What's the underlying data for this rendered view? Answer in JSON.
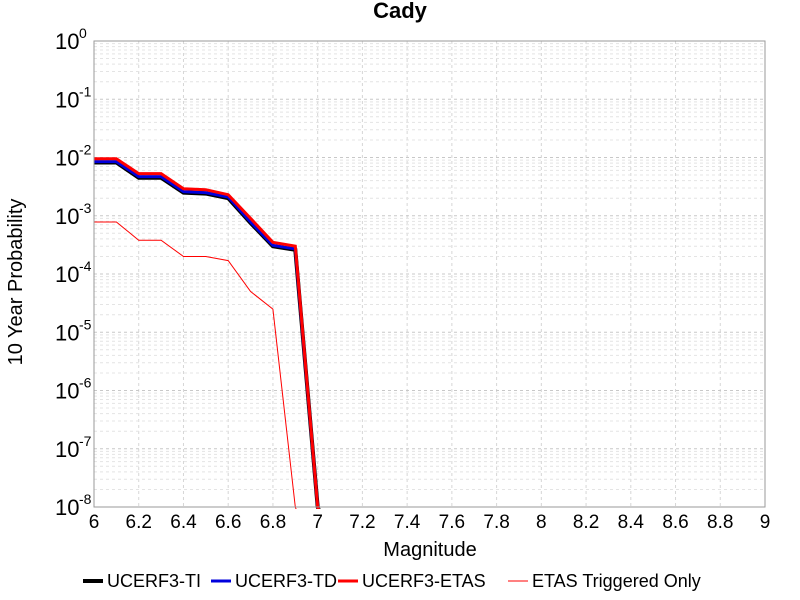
{
  "chart_data": {
    "type": "line",
    "title": "Cady",
    "xlabel": "Magnitude",
    "ylabel": "10 Year Probability",
    "xlim": [
      6,
      9
    ],
    "ylim": [
      1e-08,
      1
    ],
    "yscale": "log",
    "grid": true,
    "legend_position": "bottom",
    "xticks": [
      "6",
      "6.2",
      "6.4",
      "6.6",
      "6.8",
      "7",
      "7.2",
      "7.4",
      "7.6",
      "7.8",
      "8",
      "8.2",
      "8.4",
      "8.6",
      "8.8",
      "9"
    ],
    "yticks": [
      {
        "base": "10",
        "exp": "0"
      },
      {
        "base": "10",
        "exp": "-1"
      },
      {
        "base": "10",
        "exp": "-2"
      },
      {
        "base": "10",
        "exp": "-3"
      },
      {
        "base": "10",
        "exp": "-4"
      },
      {
        "base": "10",
        "exp": "-5"
      },
      {
        "base": "10",
        "exp": "-6"
      },
      {
        "base": "10",
        "exp": "-7"
      },
      {
        "base": "10",
        "exp": "-8"
      }
    ],
    "series": [
      {
        "name": "UCERF3-TI",
        "color": "#000000",
        "width": 4,
        "x": [
          6.0,
          6.1,
          6.2,
          6.3,
          6.4,
          6.5,
          6.6,
          6.7,
          6.8,
          6.9,
          7.0,
          7.05
        ],
        "y": [
          0.0082,
          0.0082,
          0.0045,
          0.0045,
          0.0025,
          0.0024,
          0.002,
          0.00075,
          0.0003,
          0.00026,
          1e-08,
          1e-09
        ]
      },
      {
        "name": "UCERF3-TD",
        "color": "#0000dd",
        "width": 3,
        "x": [
          6.0,
          6.1,
          6.2,
          6.3,
          6.4,
          6.5,
          6.6,
          6.7,
          6.8,
          6.9,
          7.0,
          7.05
        ],
        "y": [
          0.0085,
          0.0085,
          0.0047,
          0.0047,
          0.0026,
          0.0025,
          0.0021,
          0.00078,
          0.00031,
          0.00027,
          1e-08,
          1e-09
        ]
      },
      {
        "name": "UCERF3-ETAS",
        "color": "#ff0000",
        "width": 3,
        "x": [
          6.0,
          6.1,
          6.2,
          6.3,
          6.4,
          6.5,
          6.6,
          6.7,
          6.8,
          6.9,
          7.0,
          7.05
        ],
        "y": [
          0.0095,
          0.0095,
          0.0053,
          0.0053,
          0.0029,
          0.0028,
          0.0023,
          0.0009,
          0.00035,
          0.0003,
          1e-08,
          1e-09
        ]
      },
      {
        "name": "ETAS Triggered Only",
        "color": "#ff0000",
        "width": 1,
        "x": [
          6.0,
          6.1,
          6.2,
          6.3,
          6.4,
          6.5,
          6.6,
          6.7,
          6.8,
          6.9,
          6.95
        ],
        "y": [
          0.00078,
          0.00078,
          0.00038,
          0.00038,
          0.0002,
          0.0002,
          0.00017,
          5e-05,
          2.5e-05,
          1e-08,
          1e-09
        ]
      }
    ]
  }
}
